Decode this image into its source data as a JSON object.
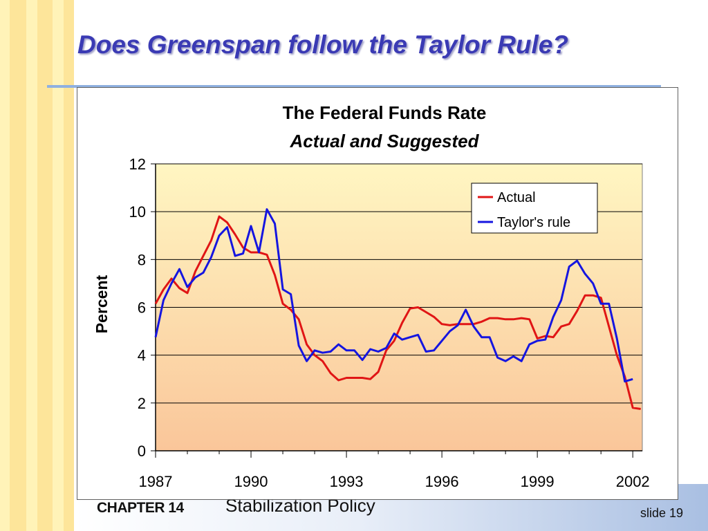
{
  "slide": {
    "title": "Does Greenspan follow the Taylor Rule?",
    "footer": {
      "chapter": "CHAPTER 14",
      "topic": "Stabilization Policy",
      "slide_number": "slide 19"
    }
  },
  "colors": {
    "title": "#3a3ab4",
    "actual": "#e01515",
    "taylor": "#1515e0",
    "plot_top": "#fff6c2",
    "plot_bottom": "#fac69a",
    "stripe_light": "#fff3b8",
    "stripe_dark": "#fde59a"
  },
  "chart_data": {
    "type": "line",
    "title": "The Federal Funds Rate",
    "subtitle": "Actual and Suggested",
    "xlabel": "",
    "ylabel": "Percent",
    "xlim": [
      1987,
      2002
    ],
    "ylim": [
      0,
      12
    ],
    "x_ticks": [
      1987,
      1990,
      1993,
      1996,
      1999,
      2002
    ],
    "y_ticks": [
      0,
      2,
      4,
      6,
      8,
      10,
      12
    ],
    "grid": "horizontal",
    "legend": "top-right",
    "series": [
      {
        "name": "Actual",
        "color": "#e01515",
        "points": [
          [
            1987.0,
            6.15
          ],
          [
            1987.25,
            6.75
          ],
          [
            1987.5,
            7.2
          ],
          [
            1987.75,
            6.8
          ],
          [
            1988.0,
            6.6
          ],
          [
            1988.25,
            7.5
          ],
          [
            1988.5,
            8.15
          ],
          [
            1988.75,
            8.8
          ],
          [
            1989.0,
            9.8
          ],
          [
            1989.25,
            9.55
          ],
          [
            1989.5,
            9.05
          ],
          [
            1989.75,
            8.5
          ],
          [
            1990.0,
            8.3
          ],
          [
            1990.25,
            8.3
          ],
          [
            1990.5,
            8.2
          ],
          [
            1990.75,
            7.35
          ],
          [
            1991.0,
            6.15
          ],
          [
            1991.25,
            5.9
          ],
          [
            1991.5,
            5.5
          ],
          [
            1991.75,
            4.45
          ],
          [
            1992.0,
            4.0
          ],
          [
            1992.25,
            3.75
          ],
          [
            1992.5,
            3.25
          ],
          [
            1992.75,
            2.95
          ],
          [
            1993.0,
            3.05
          ],
          [
            1993.25,
            3.05
          ],
          [
            1993.5,
            3.05
          ],
          [
            1993.75,
            3.0
          ],
          [
            1994.0,
            3.3
          ],
          [
            1994.25,
            4.2
          ],
          [
            1994.5,
            4.6
          ],
          [
            1994.75,
            5.35
          ],
          [
            1995.0,
            5.95
          ],
          [
            1995.25,
            6.0
          ],
          [
            1995.5,
            5.8
          ],
          [
            1995.75,
            5.6
          ],
          [
            1996.0,
            5.3
          ],
          [
            1996.25,
            5.25
          ],
          [
            1996.5,
            5.3
          ],
          [
            1996.75,
            5.3
          ],
          [
            1997.0,
            5.3
          ],
          [
            1997.25,
            5.4
          ],
          [
            1997.5,
            5.55
          ],
          [
            1997.75,
            5.55
          ],
          [
            1998.0,
            5.5
          ],
          [
            1998.25,
            5.5
          ],
          [
            1998.5,
            5.55
          ],
          [
            1998.75,
            5.5
          ],
          [
            1999.0,
            4.7
          ],
          [
            1999.25,
            4.8
          ],
          [
            1999.5,
            4.75
          ],
          [
            1999.75,
            5.2
          ],
          [
            2000.0,
            5.3
          ],
          [
            2000.25,
            5.85
          ],
          [
            2000.5,
            6.5
          ],
          [
            2000.75,
            6.5
          ],
          [
            2001.0,
            6.4
          ],
          [
            2001.25,
            5.2
          ],
          [
            2001.5,
            4.0
          ],
          [
            2001.75,
            3.1
          ],
          [
            2002.0,
            1.8
          ],
          [
            2002.25,
            1.75
          ]
        ]
      },
      {
        "name": "Taylor's rule",
        "color": "#1515e0",
        "points": [
          [
            1987.0,
            4.75
          ],
          [
            1987.25,
            6.3
          ],
          [
            1987.5,
            7.0
          ],
          [
            1987.75,
            7.6
          ],
          [
            1988.0,
            6.85
          ],
          [
            1988.25,
            7.25
          ],
          [
            1988.5,
            7.45
          ],
          [
            1988.75,
            8.1
          ],
          [
            1989.0,
            9.0
          ],
          [
            1989.25,
            9.35
          ],
          [
            1989.5,
            8.15
          ],
          [
            1989.75,
            8.25
          ],
          [
            1990.0,
            9.4
          ],
          [
            1990.25,
            8.3
          ],
          [
            1990.5,
            10.1
          ],
          [
            1990.75,
            9.5
          ],
          [
            1991.0,
            6.75
          ],
          [
            1991.25,
            6.55
          ],
          [
            1991.5,
            4.4
          ],
          [
            1991.75,
            3.75
          ],
          [
            1992.0,
            4.2
          ],
          [
            1992.25,
            4.1
          ],
          [
            1992.5,
            4.15
          ],
          [
            1992.75,
            4.45
          ],
          [
            1993.0,
            4.2
          ],
          [
            1993.25,
            4.2
          ],
          [
            1993.5,
            3.8
          ],
          [
            1993.75,
            4.25
          ],
          [
            1994.0,
            4.15
          ],
          [
            1994.25,
            4.3
          ],
          [
            1994.5,
            4.9
          ],
          [
            1994.75,
            4.65
          ],
          [
            1995.0,
            4.75
          ],
          [
            1995.25,
            4.85
          ],
          [
            1995.5,
            4.15
          ],
          [
            1995.75,
            4.2
          ],
          [
            1996.0,
            4.6
          ],
          [
            1996.25,
            5.0
          ],
          [
            1996.5,
            5.25
          ],
          [
            1996.75,
            5.9
          ],
          [
            1997.0,
            5.2
          ],
          [
            1997.25,
            4.75
          ],
          [
            1997.5,
            4.75
          ],
          [
            1997.75,
            3.9
          ],
          [
            1998.0,
            3.75
          ],
          [
            1998.25,
            3.95
          ],
          [
            1998.5,
            3.75
          ],
          [
            1998.75,
            4.45
          ],
          [
            1999.0,
            4.6
          ],
          [
            1999.25,
            4.65
          ],
          [
            1999.5,
            5.6
          ],
          [
            1999.75,
            6.3
          ],
          [
            2000.0,
            7.7
          ],
          [
            2000.25,
            7.95
          ],
          [
            2000.5,
            7.4
          ],
          [
            2000.75,
            7.0
          ],
          [
            2001.0,
            6.15
          ],
          [
            2001.25,
            6.15
          ],
          [
            2001.5,
            4.7
          ],
          [
            2001.75,
            2.9
          ],
          [
            2002.0,
            3.0
          ]
        ]
      }
    ]
  }
}
